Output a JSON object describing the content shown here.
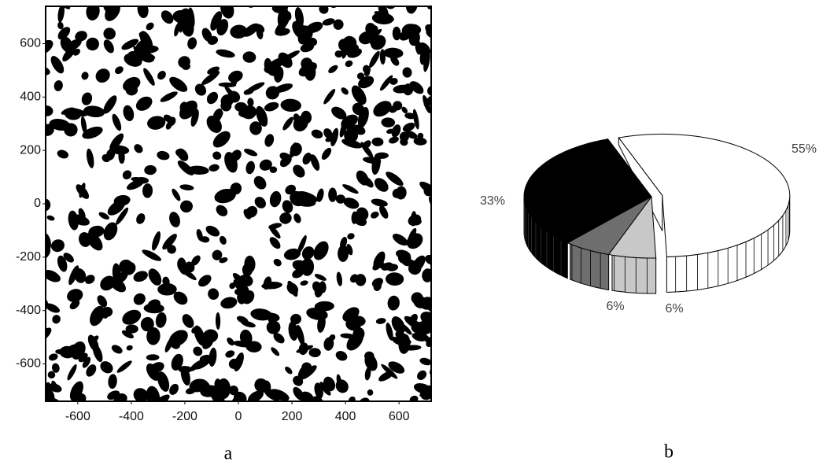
{
  "chart_data": [
    {
      "type": "image",
      "caption": "a",
      "xlim": [
        -720,
        720
      ],
      "ylim": [
        -740,
        740
      ],
      "xticks": [
        -600,
        -400,
        -200,
        0,
        200,
        400,
        600
      ],
      "yticks": [
        -600,
        -400,
        -200,
        0,
        200,
        400,
        600
      ]
    },
    {
      "type": "pie",
      "caption": "b",
      "values": [
        55,
        6,
        6,
        33
      ],
      "value_labels": [
        "55%",
        "6%",
        "6%",
        "33%"
      ],
      "colors": [
        "#ffffff",
        "#c8c8c8",
        "#6e6e6e",
        "#000000"
      ]
    }
  ]
}
